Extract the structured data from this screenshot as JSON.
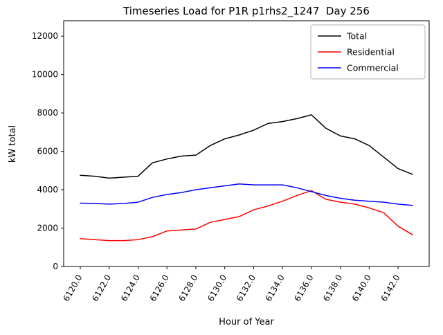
{
  "figure": {
    "title": "Timeseries Load for P1R p1rhs2_1247  Day 256"
  },
  "chart_data": {
    "type": "line",
    "title": "Timeseries Load for P1R p1rhs2_1247  Day 256",
    "xlabel": "Hour of Year",
    "ylabel": "kW total",
    "xlim": [
      6118.85,
      6144.15
    ],
    "ylim": [
      0,
      12800
    ],
    "grid": false,
    "xticks": [
      6120,
      6122,
      6124,
      6126,
      6128,
      6130,
      6132,
      6134,
      6136,
      6138,
      6140,
      6142
    ],
    "xtick_labels": [
      "6120.0",
      "6122.0",
      "6124.0",
      "6126.0",
      "6128.0",
      "6130.0",
      "6132.0",
      "6134.0",
      "6136.0",
      "6138.0",
      "6140.0",
      "6142.0"
    ],
    "yticks": [
      0,
      2000,
      4000,
      6000,
      8000,
      10000,
      12000
    ],
    "ytick_labels": [
      "0",
      "2000",
      "4000",
      "6000",
      "8000",
      "10000",
      "12000"
    ],
    "legend": {
      "position": "upper right",
      "entries": [
        "Total",
        "Residential",
        "Commercial"
      ]
    },
    "x": [
      6120,
      6121,
      6122,
      6123,
      6124,
      6125,
      6126,
      6127,
      6128,
      6129,
      6130,
      6131,
      6132,
      6133,
      6134,
      6135,
      6136,
      6137,
      6138,
      6139,
      6140,
      6141,
      6142,
      6143
    ],
    "series": [
      {
        "name": "Total",
        "color": "#000000",
        "values": [
          4750,
          4700,
          4600,
          4650,
          4700,
          5400,
          5600,
          5750,
          5800,
          6300,
          6650,
          6850,
          7100,
          7450,
          7550,
          7700,
          7900,
          7200,
          6800,
          6650,
          6300,
          5700,
          5100,
          4800
        ]
      },
      {
        "name": "Residential",
        "color": "#ff0000",
        "values": [
          1450,
          1400,
          1350,
          1350,
          1400,
          1550,
          1850,
          1900,
          1950,
          2300,
          2450,
          2600,
          2950,
          3150,
          3400,
          3700,
          3950,
          3500,
          3350,
          3250,
          3050,
          2800,
          2100,
          1650
        ]
      },
      {
        "name": "Commercial",
        "color": "#0000ff",
        "values": [
          3300,
          3280,
          3250,
          3280,
          3350,
          3600,
          3750,
          3850,
          4000,
          4100,
          4200,
          4300,
          4250,
          4250,
          4250,
          4100,
          3900,
          3700,
          3550,
          3450,
          3400,
          3350,
          3250,
          3180
        ]
      }
    ]
  }
}
